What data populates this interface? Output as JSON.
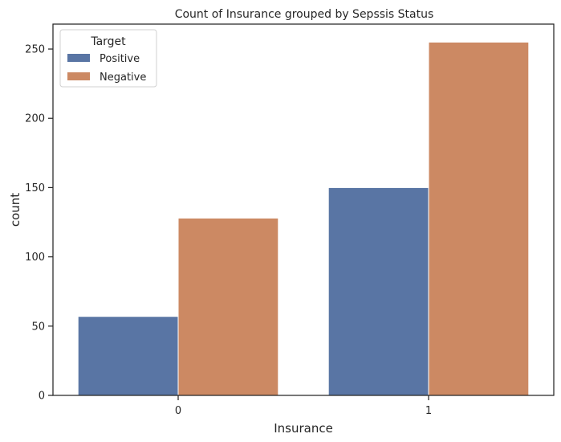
{
  "chart_data": {
    "type": "bar",
    "title": "Count of Insurance grouped by Sepssis Status",
    "xlabel": "Insurance",
    "ylabel": "count",
    "categories": [
      "0",
      "1"
    ],
    "series": [
      {
        "name": "Positive",
        "values": [
          57,
          150
        ],
        "color": "#5975a4"
      },
      {
        "name": "Negative",
        "values": [
          128,
          255
        ],
        "color": "#cc8963"
      }
    ],
    "ylim": [
      0,
      268
    ],
    "yticks": [
      0,
      50,
      100,
      150,
      200,
      250
    ],
    "grid": false,
    "legend": {
      "title": "Target",
      "placement": "top-left"
    }
  }
}
